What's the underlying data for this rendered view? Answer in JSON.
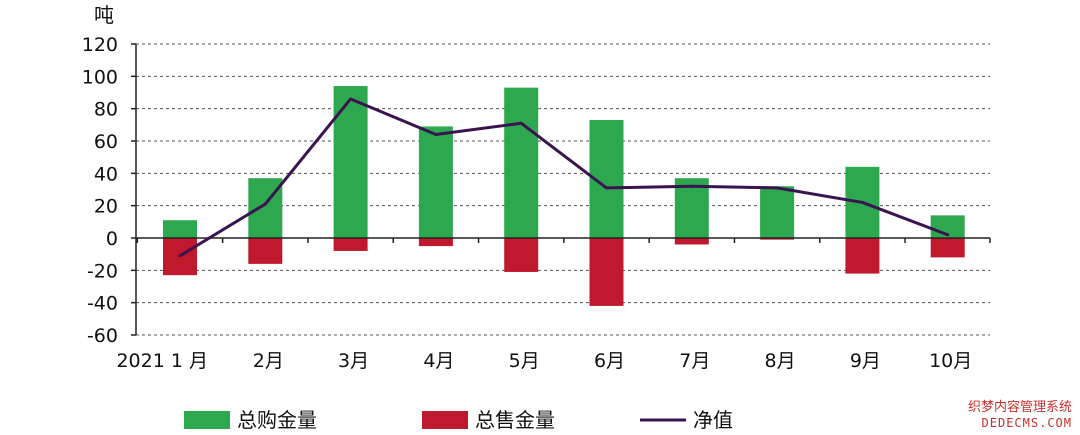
{
  "chart_data": {
    "type": "bar",
    "ylabel": "吨",
    "ylim": [
      -60,
      120
    ],
    "yticks": [
      120,
      100,
      80,
      60,
      40,
      20,
      0,
      -20,
      -40,
      -60
    ],
    "grid": true,
    "legend_position": "bottom",
    "categories": [
      "2021 1 月",
      "2月",
      "3月",
      "4月",
      "5月",
      "6月",
      "7月",
      "8月",
      "9月",
      "10月"
    ],
    "series": [
      {
        "name": "总购金量",
        "kind": "bar",
        "color": "#2ea84f",
        "values": [
          11,
          37,
          94,
          69,
          93,
          73,
          37,
          32,
          44,
          14
        ]
      },
      {
        "name": "总售金量",
        "kind": "bar",
        "color": "#c0182c",
        "values": [
          -23,
          -16,
          -8,
          -5,
          -21,
          -42,
          -4,
          -1,
          -22,
          -12
        ]
      },
      {
        "name": "净值",
        "kind": "line",
        "color": "#3a1450",
        "values": [
          -11,
          21,
          86,
          64,
          71,
          31,
          32,
          31,
          22,
          2
        ]
      }
    ]
  },
  "watermark": {
    "line1": "织梦内容管理系统",
    "line2": "DEDECMS.COM"
  }
}
